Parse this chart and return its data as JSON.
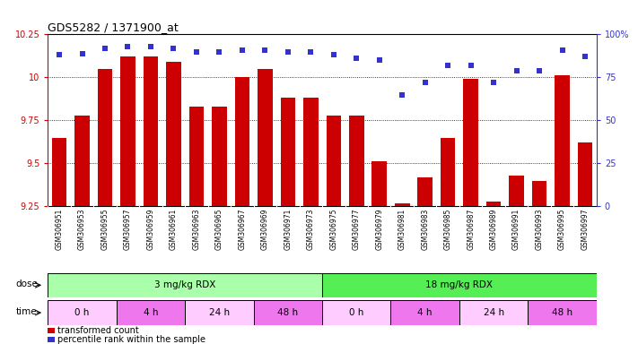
{
  "title": "GDS5282 / 1371900_at",
  "samples": [
    "GSM306951",
    "GSM306953",
    "GSM306955",
    "GSM306957",
    "GSM306959",
    "GSM306961",
    "GSM306963",
    "GSM306965",
    "GSM306967",
    "GSM306969",
    "GSM306971",
    "GSM306973",
    "GSM306975",
    "GSM306977",
    "GSM306979",
    "GSM306981",
    "GSM306983",
    "GSM306985",
    "GSM306987",
    "GSM306989",
    "GSM306991",
    "GSM306993",
    "GSM306995",
    "GSM306997"
  ],
  "bar_values": [
    9.65,
    9.78,
    10.05,
    10.12,
    10.12,
    10.09,
    9.83,
    9.83,
    10.0,
    10.05,
    9.88,
    9.88,
    9.78,
    9.78,
    9.51,
    9.27,
    9.42,
    9.65,
    9.99,
    9.28,
    9.43,
    9.4,
    10.01,
    9.62
  ],
  "dot_values": [
    88,
    89,
    92,
    93,
    93,
    92,
    90,
    90,
    91,
    91,
    90,
    90,
    88,
    86,
    85,
    65,
    72,
    82,
    82,
    72,
    79,
    79,
    91,
    87
  ],
  "bar_color": "#cc0000",
  "dot_color": "#3333cc",
  "ylim_left": [
    9.25,
    10.25
  ],
  "ylim_right": [
    0,
    100
  ],
  "yticks_left": [
    9.25,
    9.5,
    9.75,
    10.0,
    10.25
  ],
  "ytick_labels_left": [
    "9.25",
    "9.5",
    "9.75",
    "10",
    "10.25"
  ],
  "yticks_right": [
    0,
    25,
    50,
    75,
    100
  ],
  "ytick_labels_right": [
    "0",
    "25",
    "50",
    "75",
    "100%"
  ],
  "grid_values": [
    9.5,
    9.75,
    10.0
  ],
  "dose_groups": [
    {
      "label": "3 mg/kg RDX",
      "start": 0,
      "end": 12,
      "color": "#aaffaa"
    },
    {
      "label": "18 mg/kg RDX",
      "start": 12,
      "end": 24,
      "color": "#55ee55"
    }
  ],
  "time_groups": [
    {
      "label": "0 h",
      "start": 0,
      "end": 3,
      "color": "#ffccff"
    },
    {
      "label": "4 h",
      "start": 3,
      "end": 6,
      "color": "#ee77ee"
    },
    {
      "label": "24 h",
      "start": 6,
      "end": 9,
      "color": "#ffccff"
    },
    {
      "label": "48 h",
      "start": 9,
      "end": 12,
      "color": "#ee77ee"
    },
    {
      "label": "0 h",
      "start": 12,
      "end": 15,
      "color": "#ffccff"
    },
    {
      "label": "4 h",
      "start": 15,
      "end": 18,
      "color": "#ee77ee"
    },
    {
      "label": "24 h",
      "start": 18,
      "end": 21,
      "color": "#ffccff"
    },
    {
      "label": "48 h",
      "start": 21,
      "end": 24,
      "color": "#ee77ee"
    }
  ],
  "legend_bar_label": "transformed count",
  "legend_dot_label": "percentile rank within the sample",
  "dose_label": "dose",
  "time_label": "time",
  "background_color": "#ffffff",
  "plot_bg_color": "#ffffff",
  "tick_bg_color": "#dddddd"
}
